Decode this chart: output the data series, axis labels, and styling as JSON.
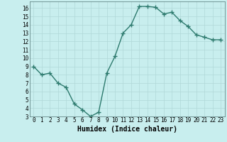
{
  "x": [
    0,
    1,
    2,
    3,
    4,
    5,
    6,
    7,
    8,
    9,
    10,
    11,
    12,
    13,
    14,
    15,
    16,
    17,
    18,
    19,
    20,
    21,
    22,
    23
  ],
  "y": [
    9.0,
    8.0,
    8.2,
    7.0,
    6.5,
    4.5,
    3.8,
    3.0,
    3.5,
    8.2,
    10.2,
    13.0,
    14.0,
    16.2,
    16.2,
    16.1,
    15.3,
    15.5,
    14.5,
    13.8,
    12.8,
    12.5,
    12.2,
    12.2
  ],
  "color": "#2d7a6e",
  "bg_color": "#c8eeee",
  "grid_color": "#b0d8d8",
  "xlabel": "Humidex (Indice chaleur)",
  "ylim": [
    3,
    16.8
  ],
  "xlim": [
    -0.5,
    23.5
  ],
  "yticks": [
    3,
    4,
    5,
    6,
    7,
    8,
    9,
    10,
    11,
    12,
    13,
    14,
    15,
    16
  ],
  "xticks": [
    0,
    1,
    2,
    3,
    4,
    5,
    6,
    7,
    8,
    9,
    10,
    11,
    12,
    13,
    14,
    15,
    16,
    17,
    18,
    19,
    20,
    21,
    22,
    23
  ],
  "marker": "+",
  "markersize": 4,
  "linewidth": 1.0,
  "xlabel_fontsize": 7,
  "tick_fontsize": 5.5
}
